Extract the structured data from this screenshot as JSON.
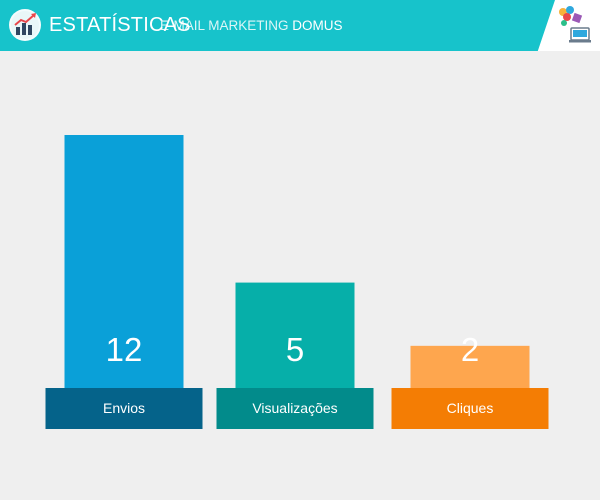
{
  "header": {
    "title": "ESTATÍSTICAS",
    "subtitle_prefix": "E-MAIL MARKETING",
    "subtitle_brand": "DOMUS",
    "band_color": "#17c3cb",
    "icon": "bar-chart-trend-icon",
    "logo": "domus-brand-logo"
  },
  "chart_data": {
    "type": "bar",
    "title": "",
    "xlabel": "",
    "ylabel": "",
    "categories": [
      "Envios",
      "Visualizações",
      "Cliques"
    ],
    "values": [
      12,
      5,
      2
    ],
    "bar_colors": [
      "#0aa0d8",
      "#06afa9",
      "#fea64e"
    ],
    "label_bg_colors": [
      "#05638a",
      "#028b8b",
      "#f47d04"
    ],
    "grid": false,
    "legend": "none"
  }
}
